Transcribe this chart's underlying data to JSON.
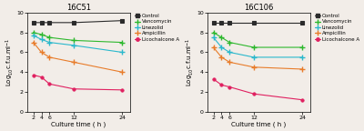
{
  "panels": [
    {
      "title": "16C51",
      "x": [
        2,
        4,
        6,
        12,
        24
      ],
      "series": [
        {
          "label": "Control",
          "color": "#2b2b2b",
          "marker": "s",
          "y": [
            9.0,
            9.0,
            9.0,
            9.0,
            9.2
          ]
        },
        {
          "label": "Vancomycin",
          "color": "#2db82d",
          "marker": "+",
          "y": [
            8.0,
            7.8,
            7.5,
            7.2,
            7.0
          ]
        },
        {
          "label": "Linezolid",
          "color": "#2ab8cc",
          "marker": "+",
          "y": [
            7.7,
            7.3,
            7.0,
            6.7,
            6.0
          ]
        },
        {
          "label": "Ampicillin",
          "color": "#e87c2a",
          "marker": "+",
          "y": [
            7.0,
            6.0,
            5.5,
            5.0,
            4.0
          ]
        },
        {
          "label": "Licochalcone A",
          "color": "#e02060",
          "marker": "o",
          "y": [
            3.7,
            3.5,
            2.8,
            2.3,
            2.2
          ]
        }
      ],
      "ylim": [
        0,
        10
      ],
      "yticks": [
        0,
        2,
        4,
        6,
        8,
        10
      ]
    },
    {
      "title": "16C106",
      "x": [
        2,
        4,
        6,
        12,
        24
      ],
      "series": [
        {
          "label": "Control",
          "color": "#2b2b2b",
          "marker": "s",
          "y": [
            9.0,
            9.0,
            9.0,
            9.0,
            9.0
          ]
        },
        {
          "label": "Vancomycin",
          "color": "#2db82d",
          "marker": "+",
          "y": [
            8.0,
            7.5,
            7.0,
            6.5,
            6.5
          ]
        },
        {
          "label": "Linezolid",
          "color": "#2ab8cc",
          "marker": "+",
          "y": [
            7.5,
            6.5,
            6.0,
            5.5,
            5.5
          ]
        },
        {
          "label": "Ampicillin",
          "color": "#e87c2a",
          "marker": "+",
          "y": [
            6.5,
            5.5,
            5.0,
            4.5,
            4.3
          ]
        },
        {
          "label": "Licochalcone A",
          "color": "#e02060",
          "marker": "o",
          "y": [
            3.3,
            2.7,
            2.5,
            1.8,
            1.2
          ]
        }
      ],
      "ylim": [
        0,
        10
      ],
      "yticks": [
        0,
        2,
        4,
        6,
        8,
        10
      ]
    }
  ],
  "xlabel": "Culture time ( h )",
  "xticks": [
    2,
    4,
    6,
    12,
    24
  ],
  "xlim": [
    0.5,
    26
  ],
  "ylabel": "Log$_{10}$c.f.u.ml$^{-1}$",
  "background_color": "#f2ede8",
  "legend_colors": [
    "#2b2b2b",
    "#2db82d",
    "#2ab8cc",
    "#e87c2a",
    "#e02060"
  ],
  "legend_markers": [
    "s",
    "+",
    "+",
    "+",
    "o"
  ],
  "legend_labels": [
    "Control",
    "Vancomycin",
    "Linezolid",
    "Ampicillin",
    "Licochalcone A"
  ]
}
